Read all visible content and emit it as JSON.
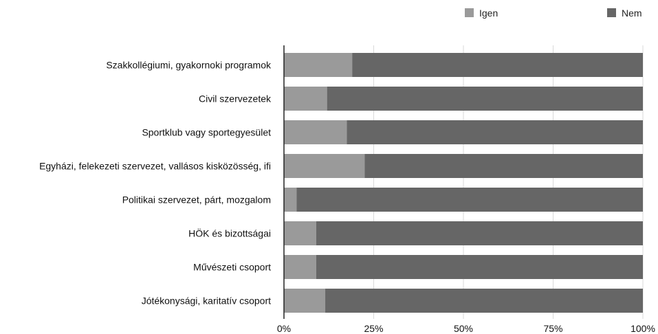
{
  "colors": {
    "igen": "#9a9a9a",
    "nem": "#666666",
    "grid": "#d9d9d9",
    "axis": "#222222"
  },
  "chart_data": {
    "type": "bar",
    "orientation": "horizontal",
    "stacking": "percent",
    "categories": [
      "Szakkollégiumi, gyakornoki programok",
      "Civil szervezetek",
      "Sportklub vagy sportegyesület",
      "Egyházi, felekezeti szervezet, vallásos kisközösség, ifi",
      "Politikai szervezet, párt, mozgalom",
      "HÖK és bizottságai",
      "Művészeti csoport",
      "Jótékonysági, karitatív csoport"
    ],
    "series": [
      {
        "name": "Igen",
        "values": [
          19,
          12,
          17.5,
          22.5,
          3.5,
          9,
          9,
          11.5
        ]
      },
      {
        "name": "Nem",
        "values": [
          81,
          88,
          82.5,
          77.5,
          96.5,
          91,
          91,
          88.5
        ]
      }
    ],
    "xlim": [
      0,
      100
    ],
    "x_ticks": [
      "0%",
      "25%",
      "50%",
      "75%",
      "100%"
    ],
    "grid": true,
    "legend_position": "top-right"
  }
}
